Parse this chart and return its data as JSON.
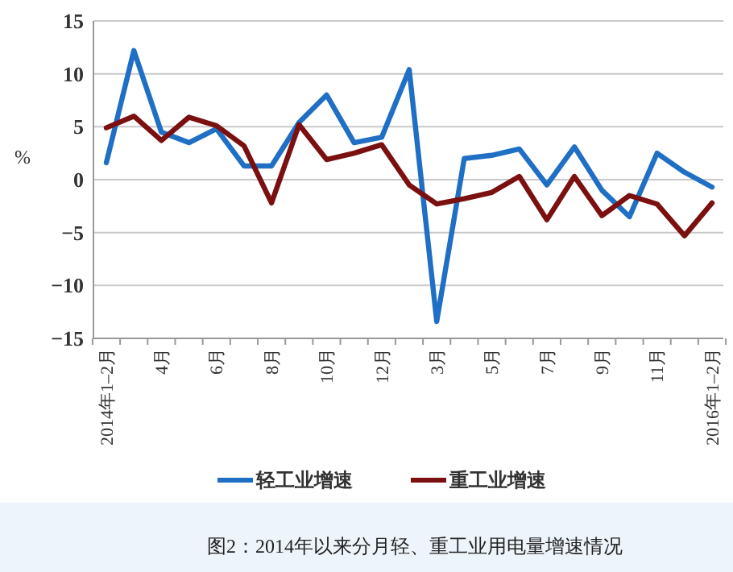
{
  "chart_data": {
    "type": "line",
    "title": "图2：2014年以来分月轻、重工业用电量增速情况",
    "ylabel": "%",
    "categories": [
      "2014年1–2月",
      null,
      "4月",
      null,
      "6月",
      null,
      "8月",
      null,
      "10月",
      null,
      "12月",
      null,
      "3月",
      null,
      "5月",
      null,
      "7月",
      null,
      "9月",
      null,
      "11月",
      null,
      "2016年1–2月"
    ],
    "series": [
      {
        "name": "轻工业增速",
        "color": "#1f6fc5",
        "values": [
          1.6,
          12.2,
          4.5,
          3.5,
          4.8,
          1.3,
          1.3,
          5.4,
          8.0,
          3.5,
          4.0,
          10.4,
          -13.4,
          2.0,
          2.3,
          2.9,
          -0.5,
          3.1,
          -1.0,
          -3.5,
          2.5,
          0.7,
          -0.7
        ]
      },
      {
        "name": "重工业增速",
        "color": "#7b1010",
        "values": [
          4.9,
          6.0,
          3.7,
          5.9,
          5.1,
          3.2,
          -2.2,
          5.2,
          1.9,
          2.5,
          3.3,
          -0.5,
          -2.3,
          -1.8,
          -1.2,
          0.3,
          -3.8,
          0.3,
          -3.4,
          -1.5,
          -2.3,
          -5.3,
          -2.2
        ]
      }
    ],
    "ylim": [
      -15,
      15
    ],
    "yticks": [
      -15,
      -10,
      -5,
      0,
      5,
      10,
      15
    ],
    "grid": "y",
    "legend": "bottom",
    "line_style": "solid",
    "marker": "none"
  }
}
